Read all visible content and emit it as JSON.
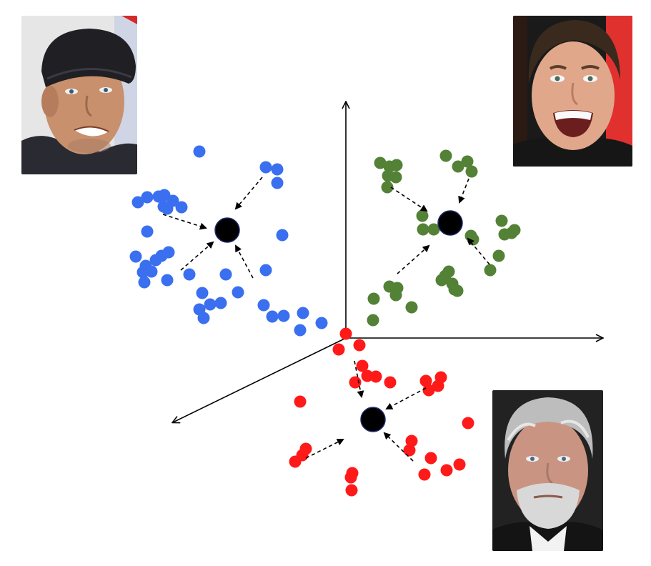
{
  "title": "",
  "colors": {
    "background": "#ffffff",
    "axis": "#000000",
    "centroid": "#000000",
    "centroid_edge": "#1e2a6e",
    "arrow": "#000000"
  },
  "clusters": [
    {
      "name": "",
      "color": "#3a6ff0",
      "centroid": [
        318,
        322
      ],
      "points": [
        [
          279,
          212
        ],
        [
          372,
          234
        ],
        [
          388,
          237
        ],
        [
          388,
          256
        ],
        [
          193,
          283
        ],
        [
          206,
          276
        ],
        [
          222,
          275
        ],
        [
          230,
          273
        ],
        [
          242,
          281
        ],
        [
          229,
          289
        ],
        [
          234,
          292
        ],
        [
          254,
          290
        ],
        [
          206,
          324
        ],
        [
          395,
          329
        ],
        [
          190,
          359
        ],
        [
          204,
          372
        ],
        [
          218,
          364
        ],
        [
          226,
          358
        ],
        [
          236,
          353
        ],
        [
          200,
          381
        ],
        [
          212,
          380
        ],
        [
          202,
          395
        ],
        [
          234,
          392
        ],
        [
          265,
          384
        ],
        [
          316,
          384
        ],
        [
          372,
          378
        ],
        [
          283,
          410
        ],
        [
          333,
          409
        ],
        [
          279,
          433
        ],
        [
          294,
          426
        ],
        [
          309,
          424
        ],
        [
          285,
          445
        ],
        [
          369,
          427
        ],
        [
          381,
          443
        ],
        [
          397,
          442
        ],
        [
          424,
          438
        ],
        [
          450,
          452
        ],
        [
          420,
          462
        ]
      ],
      "arrows": [
        [
          [
            367,
            248
          ],
          [
            330,
            292
          ]
        ],
        [
          [
            228,
            300
          ],
          [
            288,
            319
          ]
        ],
        [
          [
            253,
            378
          ],
          [
            298,
            339
          ]
        ],
        [
          [
            354,
            389
          ],
          [
            330,
            344
          ]
        ]
      ]
    },
    {
      "name": "",
      "color": "#538136",
      "centroid": [
        630,
        312
      ],
      "points": [
        [
          532,
          228
        ],
        [
          545,
          233
        ],
        [
          555,
          231
        ],
        [
          543,
          246
        ],
        [
          554,
          248
        ],
        [
          542,
          262
        ],
        [
          624,
          218
        ],
        [
          641,
          233
        ],
        [
          654,
          226
        ],
        [
          660,
          240
        ],
        [
          591,
          302
        ],
        [
          592,
          321
        ],
        [
          607,
          321
        ],
        [
          659,
          330
        ],
        [
          662,
          335
        ],
        [
          702,
          309
        ],
        [
          706,
          328
        ],
        [
          716,
          326
        ],
        [
          720,
          322
        ],
        [
          698,
          358
        ],
        [
          686,
          378
        ],
        [
          628,
          380
        ],
        [
          623,
          386
        ],
        [
          618,
          392
        ],
        [
          633,
          397
        ],
        [
          636,
          405
        ],
        [
          640,
          407
        ],
        [
          523,
          418
        ],
        [
          545,
          401
        ],
        [
          556,
          403
        ],
        [
          554,
          413
        ],
        [
          576,
          430
        ],
        [
          522,
          448
        ]
      ],
      "arrows": [
        [
          [
            547,
            262
          ],
          [
            597,
            295
          ]
        ],
        [
          [
            656,
            250
          ],
          [
            643,
            283
          ]
        ],
        [
          [
            556,
            383
          ],
          [
            600,
            344
          ]
        ],
        [
          [
            685,
            370
          ],
          [
            655,
            334
          ]
        ]
      ]
    },
    {
      "name": "",
      "color": "#ff1a1a",
      "centroid": [
        522,
        587
      ],
      "points": [
        [
          484,
          467
        ],
        [
          503,
          483
        ],
        [
          474,
          489
        ],
        [
          507,
          512
        ],
        [
          514,
          526
        ],
        [
          526,
          527
        ],
        [
          546,
          535
        ],
        [
          497,
          535
        ],
        [
          596,
          533
        ],
        [
          617,
          528
        ],
        [
          613,
          540
        ],
        [
          600,
          546
        ],
        [
          420,
          562
        ],
        [
          655,
          592
        ],
        [
          428,
          628
        ],
        [
          423,
          637
        ],
        [
          413,
          646
        ],
        [
          576,
          617
        ],
        [
          573,
          630
        ],
        [
          603,
          641
        ],
        [
          643,
          650
        ],
        [
          625,
          658
        ],
        [
          594,
          664
        ],
        [
          493,
          662
        ],
        [
          491,
          668
        ],
        [
          492,
          686
        ]
      ],
      "arrows": [
        [
          [
            496,
            505
          ],
          [
            506,
            555
          ]
        ],
        [
          [
            596,
            543
          ],
          [
            541,
            572
          ]
        ],
        [
          [
            428,
            641
          ],
          [
            480,
            615
          ]
        ],
        [
          [
            578,
            645
          ],
          [
            538,
            606
          ]
        ]
      ]
    }
  ],
  "axes": {
    "origin": [
      484,
      473
    ],
    "up": [
      484,
      143
    ],
    "right": [
      843,
      473
    ],
    "diag": [
      242,
      591
    ]
  },
  "portraits": [
    {
      "name": "portrait-top-left",
      "hair": "#2a2a2a",
      "skin": "#c8906c",
      "bg": "#e8e8e8",
      "shirt": "#2a2a33",
      "cap": "#1f1f24"
    },
    {
      "name": "portrait-top-right",
      "hair": "#3a2a1e",
      "skin": "#e0a78a",
      "bg": "#e0312f",
      "shirt": "#1a1a1a",
      "cap": ""
    },
    {
      "name": "portrait-bottom-right",
      "hair": "#b8b8b8",
      "skin": "#c99582",
      "bg": "#202020",
      "shirt": "#1a1a1a",
      "cap": ""
    }
  ]
}
